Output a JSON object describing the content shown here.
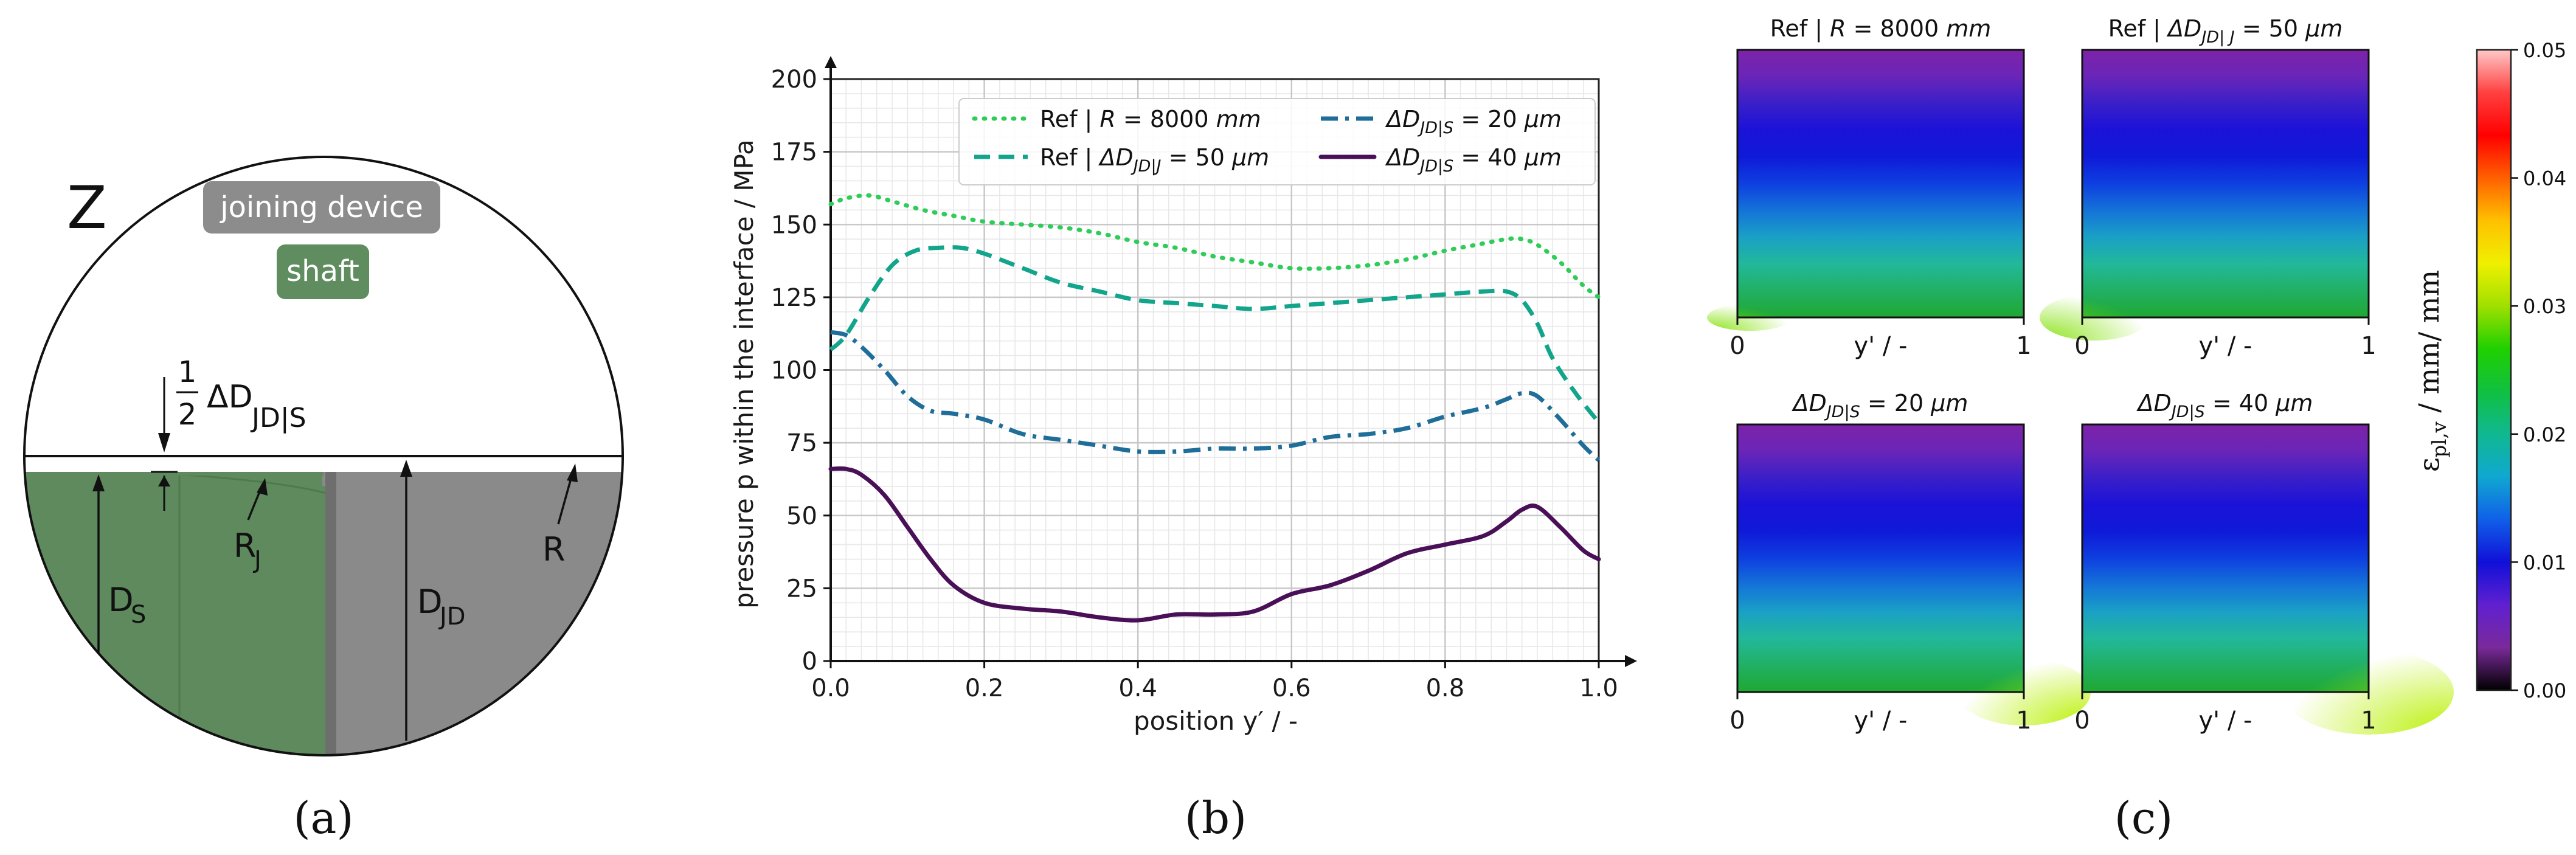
{
  "panel_labels": {
    "a": "(a)",
    "b": "(b)",
    "c": "(c)"
  },
  "schematic": {
    "detail_label": "Z",
    "joining_device_label": "joining device",
    "shaft_label": "shaft",
    "gap_fraction_num": "1",
    "gap_fraction_den": "2",
    "gap_symbol": "ΔD",
    "gap_subscript": "JD|S",
    "ds_main": "D",
    "ds_sub": "S",
    "rj_main": "R",
    "rj_sub": "J",
    "djd_main": "D",
    "djd_sub": "JD",
    "r_label": "R",
    "colors": {
      "shaft": "#5e8a5e",
      "device": "#8a8a8a",
      "device_badge": "#8c8c8c",
      "shaft_badge": "#5f8d5f"
    }
  },
  "chart_data": [
    {
      "type": "line",
      "xlabel": "position y′ / -",
      "ylabel": "pressure p within the interface  / MPa",
      "xlim": [
        0.0,
        1.0
      ],
      "ylim": [
        0,
        200
      ],
      "xticks": [
        "0.0",
        "0.2",
        "0.4",
        "0.6",
        "0.8",
        "1.0"
      ],
      "yticks": [
        "0",
        "25",
        "50",
        "75",
        "100",
        "125",
        "150",
        "175",
        "200"
      ],
      "grid": "major and minor",
      "legend_position": "top",
      "series": [
        {
          "name": "Ref | R = 8000 mm",
          "legend_main": "Ref | ",
          "legend_italic": "R",
          "legend_tail": " = 8000 ",
          "legend_unit": "mm",
          "color": "#2ecc59",
          "dash": "dotted",
          "x": [
            0,
            0.02,
            0.05,
            0.08,
            0.12,
            0.16,
            0.2,
            0.25,
            0.3,
            0.35,
            0.4,
            0.45,
            0.5,
            0.55,
            0.6,
            0.65,
            0.7,
            0.75,
            0.8,
            0.84,
            0.88,
            0.9,
            0.92,
            0.95,
            0.98,
            1.0
          ],
          "y": [
            157,
            159,
            160,
            158,
            155,
            153,
            151,
            150,
            149,
            147,
            144,
            142,
            139,
            137,
            135,
            135,
            136,
            138,
            141,
            143,
            145,
            145,
            143,
            137,
            129,
            125
          ]
        },
        {
          "name": "Ref | ΔD_JD|J = 50 μm",
          "legend_main": "Ref | ",
          "legend_italic": "ΔD",
          "legend_sub": "JD|J",
          "legend_tail": " = 50 ",
          "legend_unit": "μm",
          "color": "#13a58c",
          "dash": "dashed",
          "x": [
            0,
            0.02,
            0.05,
            0.08,
            0.11,
            0.14,
            0.17,
            0.2,
            0.25,
            0.3,
            0.35,
            0.4,
            0.45,
            0.5,
            0.55,
            0.6,
            0.65,
            0.7,
            0.75,
            0.8,
            0.85,
            0.88,
            0.9,
            0.92,
            0.94,
            0.97,
            1.0
          ],
          "y": [
            107,
            112,
            125,
            136,
            141,
            142,
            142,
            140,
            135,
            130,
            127,
            124,
            123,
            122,
            121,
            122,
            123,
            124,
            125,
            126,
            127,
            127,
            124,
            116,
            104,
            92,
            82
          ]
        },
        {
          "name": "ΔD_JD|S = 20 μm",
          "legend_main": "",
          "legend_italic": "ΔD",
          "legend_sub": "JD|S",
          "legend_tail": " = 20 ",
          "legend_unit": "μm",
          "color": "#1f6d99",
          "dash": "dashdot",
          "x": [
            0,
            0.02,
            0.04,
            0.07,
            0.1,
            0.13,
            0.16,
            0.2,
            0.25,
            0.3,
            0.35,
            0.4,
            0.45,
            0.5,
            0.55,
            0.6,
            0.65,
            0.7,
            0.75,
            0.8,
            0.85,
            0.88,
            0.9,
            0.92,
            0.95,
            0.98,
            1.0
          ],
          "y": [
            113,
            112,
            108,
            100,
            91,
            86,
            85,
            83,
            78,
            76,
            74,
            72,
            72,
            73,
            73,
            74,
            77,
            78,
            80,
            84,
            87,
            90,
            92,
            91,
            83,
            74,
            69
          ]
        },
        {
          "name": "ΔD_JD|S = 40 μm",
          "legend_main": "",
          "legend_italic": "ΔD",
          "legend_sub": "JD|S",
          "legend_tail": " = 40 ",
          "legend_unit": "μm",
          "color": "#4a1057",
          "dash": "solid",
          "x": [
            0,
            0.02,
            0.04,
            0.07,
            0.1,
            0.13,
            0.16,
            0.2,
            0.25,
            0.3,
            0.35,
            0.4,
            0.45,
            0.5,
            0.55,
            0.6,
            0.65,
            0.7,
            0.75,
            0.8,
            0.85,
            0.88,
            0.9,
            0.92,
            0.95,
            0.98,
            1.0
          ],
          "y": [
            66,
            66,
            64,
            57,
            46,
            35,
            26,
            20,
            18,
            17,
            15,
            14,
            16,
            16,
            17,
            23,
            26,
            31,
            37,
            40,
            43,
            48,
            52,
            53,
            46,
            38,
            35
          ]
        }
      ]
    },
    {
      "type": "heatmap",
      "title": "Ref | R = 8000 mm",
      "title_main": "Ref | ",
      "title_italic": "R",
      "title_tail": " = 8000 ",
      "title_unit": "mm",
      "xlabel": "y' / -",
      "xticks": [
        "0",
        "1"
      ],
      "bottom_hotspot": "left",
      "gradient": [
        "#7d23a8",
        "#6a25b8",
        "#3a1fc8",
        "#1b12d8",
        "#0f1ad8",
        "#0e3fe0",
        "#1473d8",
        "#1aa0c6",
        "#22b89a",
        "#21b064",
        "#1fa832"
      ]
    },
    {
      "type": "heatmap",
      "title": "Ref | ΔD_JD|J = 50 μm",
      "title_main": "Ref | ",
      "title_italic": "ΔD",
      "title_sub": "JD| J",
      "title_tail": " = 50 ",
      "title_unit": "μm",
      "xlabel": "y' / -",
      "xticks": [
        "0",
        "1"
      ],
      "bottom_hotspot": "left-bump",
      "gradient": [
        "#7d23a8",
        "#6a25b8",
        "#3a1fc8",
        "#1b12d8",
        "#0f1ad8",
        "#0e3fe0",
        "#1473d8",
        "#1aa0c6",
        "#22b89a",
        "#21b064",
        "#1fa832"
      ]
    },
    {
      "type": "heatmap",
      "title": "ΔD_JD|S = 20 μm",
      "title_main": "",
      "title_italic": "ΔD",
      "title_sub": "JD|S",
      "title_tail": " = 20 ",
      "title_unit": "μm",
      "xlabel": "y' / -",
      "xticks": [
        "0",
        "1"
      ],
      "bottom_hotspot": "right",
      "gradient": [
        "#7d23a8",
        "#6a25b8",
        "#3a1fc8",
        "#1b12d8",
        "#0f1ad8",
        "#0e3fe0",
        "#1473d8",
        "#1aa0c6",
        "#22b89a",
        "#21b064",
        "#1fa832"
      ]
    },
    {
      "type": "heatmap",
      "title": "ΔD_JD|S = 40 μm",
      "title_main": "",
      "title_italic": "ΔD",
      "title_sub": "JD|S",
      "title_tail": " = 40 ",
      "title_unit": "μm",
      "xlabel": "y' / -",
      "xticks": [
        "0",
        "1"
      ],
      "bottom_hotspot": "right-strong",
      "gradient": [
        "#7d23a8",
        "#6a25b8",
        "#3a1fc8",
        "#1b12d8",
        "#0f1ad8",
        "#0e3fe0",
        "#1473d8",
        "#1aa0c6",
        "#22b89a",
        "#21b064",
        "#1fa832"
      ]
    },
    {
      "type": "colorbar",
      "label_main": "ε",
      "label_sub": "pl,v",
      "label_tail": " / mm/ mm",
      "ticks": [
        "0.00",
        "0.01",
        "0.02",
        "0.03",
        "0.04",
        "0.05"
      ],
      "range": [
        0.0,
        0.05
      ],
      "colors": [
        "#000000",
        "#7a2a9a",
        "#6020d0",
        "#1010d8",
        "#1060e8",
        "#10a8d0",
        "#10b890",
        "#10c040",
        "#20d000",
        "#a0e000",
        "#f0f000",
        "#ffc000",
        "#ff6000",
        "#ff0000",
        "#ff4040",
        "#ffc8c8"
      ]
    }
  ]
}
